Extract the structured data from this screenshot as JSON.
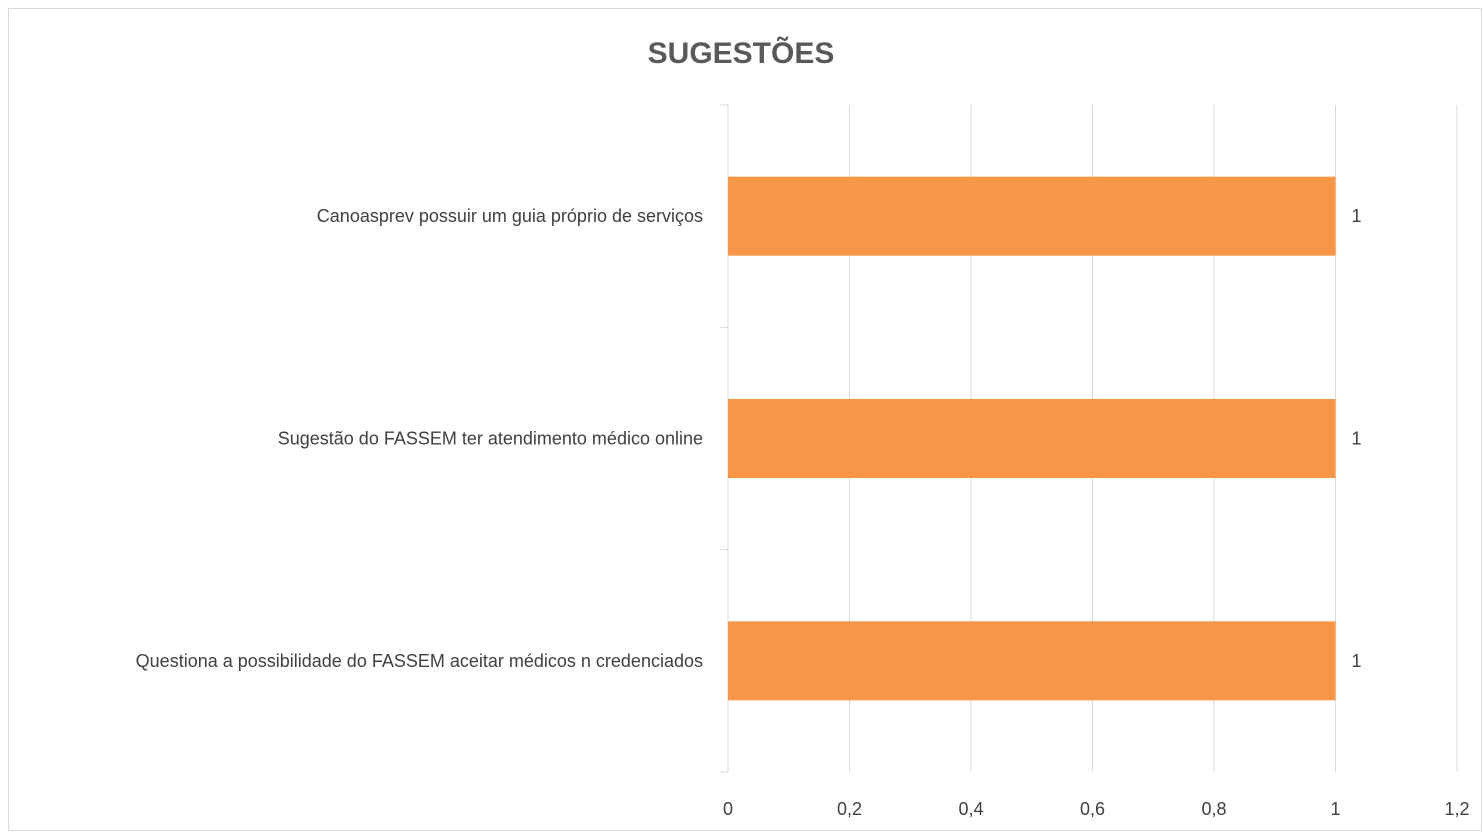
{
  "chart_data": {
    "type": "bar",
    "orientation": "horizontal",
    "title": "SUGESTÕES",
    "categories": [
      "Canoasprev possuir um guia próprio de serviços",
      "Sugestão do FASSEM ter atendimento médico online",
      "Questiona a possibilidade do FASSEM aceitar médicos n credenciados"
    ],
    "values": [
      1,
      1,
      1
    ],
    "data_labels": [
      "1",
      "1",
      "1"
    ],
    "xlim": [
      0,
      1.2
    ],
    "xticks": [
      0,
      0.2,
      0.4,
      0.6,
      0.8,
      1,
      1.2
    ],
    "xtick_labels": [
      "0",
      "0,2",
      "0,4",
      "0,6",
      "0,8",
      "1",
      "1,2"
    ],
    "grid": true,
    "colors": {
      "bar": "#F79646",
      "grid": "#d9d9d9",
      "text": "#404040",
      "title": "#595959"
    }
  }
}
